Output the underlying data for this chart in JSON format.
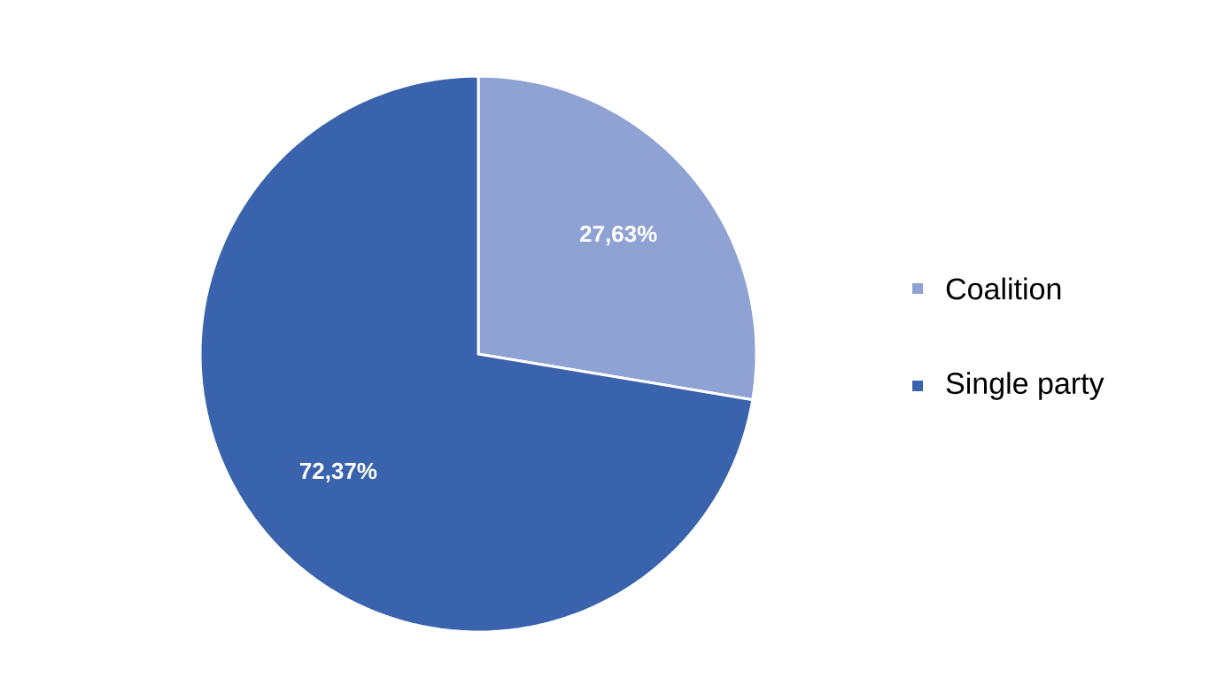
{
  "chart_data": {
    "type": "pie",
    "categories": [
      "Coalition",
      "Single party"
    ],
    "values": [
      27.63,
      72.37
    ],
    "colors": [
      "#8fa2d4",
      "#3a63ad"
    ],
    "value_labels": [
      "27,63%",
      "72,37%"
    ],
    "legend": "right"
  }
}
